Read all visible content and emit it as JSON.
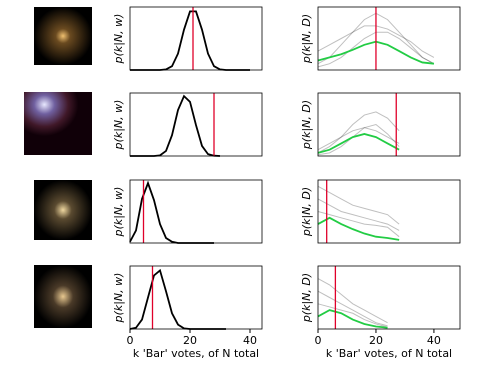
{
  "chart_data": [
    {
      "type": "line",
      "ylabel": "p(k|N, w)",
      "xlim": [
        0,
        44
      ],
      "ylim": [
        0,
        1
      ],
      "vline": {
        "value": 21,
        "color": "#e0002a"
      },
      "series": [
        {
          "color": "#000000",
          "opacity": 1,
          "x": [
            0,
            2,
            4,
            6,
            8,
            10,
            12,
            14,
            16,
            18,
            20,
            22,
            24,
            26,
            28,
            30,
            32,
            34,
            36,
            38,
            40
          ],
          "values": [
            0,
            0,
            0,
            0,
            0,
            0,
            0.01,
            0.06,
            0.26,
            0.64,
            0.93,
            0.93,
            0.64,
            0.26,
            0.06,
            0.01,
            0,
            0,
            0,
            0,
            0
          ]
        }
      ]
    },
    {
      "type": "line",
      "ylabel": "p(k|N, D)",
      "xlim": [
        0,
        49
      ],
      "ylim": [
        0,
        1
      ],
      "vline": {
        "value": 20,
        "color": "#e0002a"
      },
      "series": [
        {
          "color": "#000000",
          "opacity": 0.25,
          "x": [
            0,
            4,
            8,
            12,
            16,
            20,
            24,
            28,
            32,
            36,
            40
          ],
          "values": [
            0.1,
            0.2,
            0.4,
            0.6,
            0.8,
            0.9,
            0.8,
            0.6,
            0.4,
            0.2,
            0.1
          ]
        },
        {
          "color": "#000000",
          "opacity": 0.25,
          "x": [
            0,
            4,
            8,
            12,
            16,
            20,
            24,
            28,
            32,
            36,
            40
          ],
          "values": [
            0.05,
            0.1,
            0.2,
            0.35,
            0.5,
            0.6,
            0.6,
            0.5,
            0.35,
            0.2,
            0.1
          ]
        },
        {
          "color": "#000000",
          "opacity": 0.25,
          "x": [
            0,
            4,
            8,
            12,
            16,
            20,
            24,
            28,
            32,
            36,
            40
          ],
          "values": [
            0.3,
            0.4,
            0.5,
            0.6,
            0.7,
            0.7,
            0.65,
            0.55,
            0.45,
            0.3,
            0.2
          ]
        },
        {
          "color": "#22cc44",
          "opacity": 1,
          "x": [
            0,
            4,
            8,
            12,
            16,
            20,
            24,
            28,
            32,
            36,
            40
          ],
          "values": [
            0.15,
            0.2,
            0.25,
            0.32,
            0.4,
            0.45,
            0.4,
            0.3,
            0.2,
            0.12,
            0.1
          ]
        }
      ]
    },
    {
      "type": "line",
      "ylabel": "p(k|N, w)",
      "xlim": [
        0,
        44
      ],
      "ylim": [
        0,
        1
      ],
      "vline": {
        "value": 28,
        "color": "#e0002a"
      },
      "series": [
        {
          "color": "#000000",
          "opacity": 1,
          "x": [
            0,
            2,
            4,
            6,
            8,
            10,
            12,
            14,
            16,
            18,
            20,
            22,
            24,
            26,
            28,
            30
          ],
          "values": [
            0,
            0,
            0,
            0,
            0,
            0.01,
            0.08,
            0.33,
            0.73,
            0.95,
            0.86,
            0.49,
            0.16,
            0.03,
            0.005,
            0
          ]
        }
      ]
    },
    {
      "type": "line",
      "ylabel": "p(k|N, D)",
      "xlim": [
        0,
        49
      ],
      "ylim": [
        0,
        1
      ],
      "vline": {
        "value": 27,
        "color": "#e0002a"
      },
      "series": [
        {
          "color": "#000000",
          "opacity": 0.25,
          "x": [
            0,
            4,
            8,
            12,
            16,
            20,
            24,
            28
          ],
          "values": [
            0.05,
            0.15,
            0.3,
            0.5,
            0.65,
            0.7,
            0.6,
            0.4
          ]
        },
        {
          "color": "#000000",
          "opacity": 0.25,
          "x": [
            0,
            4,
            8,
            12,
            16,
            20,
            24,
            28
          ],
          "values": [
            0.1,
            0.2,
            0.3,
            0.4,
            0.45,
            0.4,
            0.3,
            0.2
          ]
        },
        {
          "color": "#000000",
          "opacity": 0.25,
          "x": [
            0,
            4,
            8,
            12,
            16,
            20,
            24,
            28
          ],
          "values": [
            0.02,
            0.05,
            0.15,
            0.3,
            0.45,
            0.5,
            0.35,
            0.15
          ]
        },
        {
          "color": "#22cc44",
          "opacity": 1,
          "x": [
            0,
            4,
            8,
            12,
            16,
            20,
            24,
            28
          ],
          "values": [
            0.05,
            0.1,
            0.2,
            0.3,
            0.35,
            0.3,
            0.2,
            0.1
          ]
        }
      ]
    },
    {
      "type": "line",
      "ylabel": "p(k|N, w)",
      "xlim": [
        0,
        44
      ],
      "ylim": [
        0,
        1
      ],
      "vline": {
        "value": 4.5,
        "color": "#e0002a"
      },
      "series": [
        {
          "color": "#000000",
          "opacity": 1,
          "x": [
            0,
            2,
            4,
            6,
            8,
            10,
            12,
            14,
            16,
            18,
            20,
            22,
            24,
            26,
            28
          ],
          "values": [
            0.02,
            0.2,
            0.7,
            0.95,
            0.68,
            0.3,
            0.08,
            0.02,
            0,
            0,
            0,
            0,
            0,
            0,
            0
          ]
        }
      ]
    },
    {
      "type": "line",
      "ylabel": "p(k|N, D)",
      "xlim": [
        0,
        49
      ],
      "ylim": [
        0,
        1
      ],
      "vline": {
        "value": 3,
        "color": "#e0002a"
      },
      "series": [
        {
          "color": "#000000",
          "opacity": 0.25,
          "x": [
            0,
            4,
            8,
            12,
            16,
            20,
            24,
            28
          ],
          "values": [
            0.9,
            0.8,
            0.7,
            0.6,
            0.55,
            0.5,
            0.45,
            0.3
          ]
        },
        {
          "color": "#000000",
          "opacity": 0.25,
          "x": [
            0,
            4,
            8,
            12,
            16,
            20,
            24,
            28
          ],
          "values": [
            0.7,
            0.6,
            0.5,
            0.45,
            0.4,
            0.35,
            0.3,
            0.2
          ]
        },
        {
          "color": "#000000",
          "opacity": 0.25,
          "x": [
            0,
            4,
            8,
            12,
            16,
            20,
            24,
            28
          ],
          "values": [
            0.5,
            0.45,
            0.4,
            0.35,
            0.3,
            0.28,
            0.25,
            0.1
          ]
        },
        {
          "color": "#22cc44",
          "opacity": 1,
          "x": [
            0,
            4,
            8,
            12,
            16,
            20,
            24,
            28
          ],
          "values": [
            0.3,
            0.4,
            0.3,
            0.22,
            0.15,
            0.1,
            0.08,
            0.05
          ]
        }
      ]
    },
    {
      "type": "line",
      "ylabel": "p(k|N, w)",
      "xlabel": "k 'Bar' votes, of N total",
      "xlim": [
        0,
        44
      ],
      "ylim": [
        0,
        1
      ],
      "xticks": [
        0,
        20,
        40
      ],
      "vline": {
        "value": 7.5,
        "color": "#e0002a"
      },
      "series": [
        {
          "color": "#000000",
          "opacity": 1,
          "x": [
            0,
            2,
            4,
            6,
            8,
            10,
            12,
            14,
            16,
            18,
            20,
            22,
            24,
            26,
            28,
            30,
            32
          ],
          "values": [
            0,
            0.02,
            0.15,
            0.5,
            0.85,
            0.93,
            0.6,
            0.25,
            0.07,
            0.01,
            0,
            0,
            0,
            0,
            0,
            0,
            0
          ]
        }
      ]
    },
    {
      "type": "line",
      "ylabel": "p(k|N, D)",
      "xlabel": "k 'Bar' votes, of N total",
      "xlim": [
        0,
        49
      ],
      "ylim": [
        0,
        1
      ],
      "xticks": [
        0,
        20,
        40
      ],
      "vline": {
        "value": 6,
        "color": "#e0002a"
      },
      "series": [
        {
          "color": "#000000",
          "opacity": 0.25,
          "x": [
            0,
            4,
            8,
            12,
            16,
            20,
            24
          ],
          "values": [
            0.8,
            0.7,
            0.55,
            0.4,
            0.3,
            0.2,
            0.1
          ]
        },
        {
          "color": "#000000",
          "opacity": 0.25,
          "x": [
            0,
            4,
            8,
            12,
            16,
            20,
            24
          ],
          "values": [
            0.6,
            0.5,
            0.4,
            0.3,
            0.2,
            0.1,
            0.05
          ]
        },
        {
          "color": "#000000",
          "opacity": 0.25,
          "x": [
            0,
            4,
            8,
            12,
            16,
            20,
            24
          ],
          "values": [
            0.4,
            0.35,
            0.3,
            0.25,
            0.15,
            0.08,
            0.03
          ]
        },
        {
          "color": "#22cc44",
          "opacity": 1,
          "x": [
            0,
            4,
            8,
            12,
            16,
            20,
            24
          ],
          "values": [
            0.2,
            0.3,
            0.25,
            0.15,
            0.08,
            0.04,
            0.02
          ]
        }
      ]
    }
  ]
}
